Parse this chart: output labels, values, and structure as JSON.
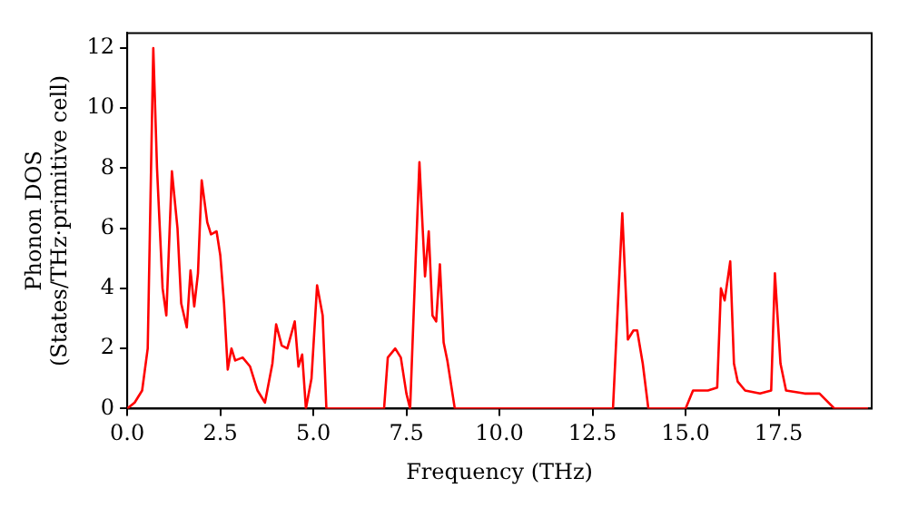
{
  "chart_data": {
    "type": "line",
    "xlabel": "Frequency (THz)",
    "ylabel": "Phonon DOS\n(States/THz·primitive cell)",
    "xlim": [
      0,
      20
    ],
    "xticks": [
      {
        "value": 0,
        "label": "0.0"
      },
      {
        "value": 2.5,
        "label": "2.5"
      },
      {
        "value": 5,
        "label": "5.0"
      },
      {
        "value": 7.5,
        "label": "7.5"
      },
      {
        "value": 10,
        "label": "10.0"
      },
      {
        "value": 12.5,
        "label": "12.5"
      },
      {
        "value": 15,
        "label": "15.0"
      },
      {
        "value": 17.5,
        "label": "17.5"
      }
    ],
    "ylim": [
      0,
      12.5
    ],
    "yticks": [
      0,
      2,
      4,
      6,
      8,
      10,
      12
    ],
    "grid": false,
    "legend": false,
    "marker": "none",
    "line_style": "solid",
    "x": [
      0,
      0.2,
      0.4,
      0.55,
      0.7,
      0.8,
      0.95,
      1.05,
      1.2,
      1.35,
      1.45,
      1.6,
      1.7,
      1.8,
      1.9,
      2.0,
      2.15,
      2.25,
      2.4,
      2.5,
      2.6,
      2.7,
      2.8,
      2.9,
      3.1,
      3.3,
      3.5,
      3.7,
      3.9,
      4.0,
      4.15,
      4.3,
      4.5,
      4.6,
      4.7,
      4.8,
      4.95,
      5.1,
      5.25,
      5.35,
      6.9,
      7.0,
      7.2,
      7.35,
      7.5,
      7.6,
      7.75,
      7.85,
      8.0,
      8.1,
      8.2,
      8.3,
      8.4,
      8.5,
      8.6,
      8.8,
      13.05,
      13.3,
      13.45,
      13.6,
      13.7,
      13.85,
      14.0,
      15.0,
      15.2,
      15.6,
      15.85,
      15.95,
      16.05,
      16.2,
      16.3,
      16.4,
      16.6,
      17.0,
      17.3,
      17.4,
      17.55,
      17.7,
      18.2,
      18.6,
      19.0,
      19.9
    ],
    "series": [
      {
        "color": "#ff0000",
        "values": [
          0,
          0.2,
          0.6,
          2,
          12,
          8,
          4,
          3.1,
          7.9,
          6,
          3.5,
          2.7,
          4.6,
          3.4,
          4.5,
          7.6,
          6.2,
          5.8,
          5.9,
          5.1,
          3.5,
          1.3,
          2.0,
          1.6,
          1.7,
          1.4,
          0.6,
          0.2,
          1.5,
          2.8,
          2.1,
          2.0,
          2.9,
          1.4,
          1.8,
          0,
          1,
          4.1,
          3.1,
          0,
          0,
          1.7,
          2.0,
          1.7,
          0.5,
          0,
          5,
          8.2,
          4.4,
          5.9,
          3.1,
          2.9,
          4.8,
          2.2,
          1.6,
          0,
          0,
          6.5,
          2.3,
          2.6,
          2.6,
          1.5,
          0,
          0,
          0.6,
          0.6,
          0.7,
          4,
          3.6,
          4.9,
          1.5,
          0.9,
          0.6,
          0.5,
          0.6,
          4.5,
          1.5,
          0.6,
          0.5,
          0.5,
          0,
          0
        ]
      }
    ]
  }
}
